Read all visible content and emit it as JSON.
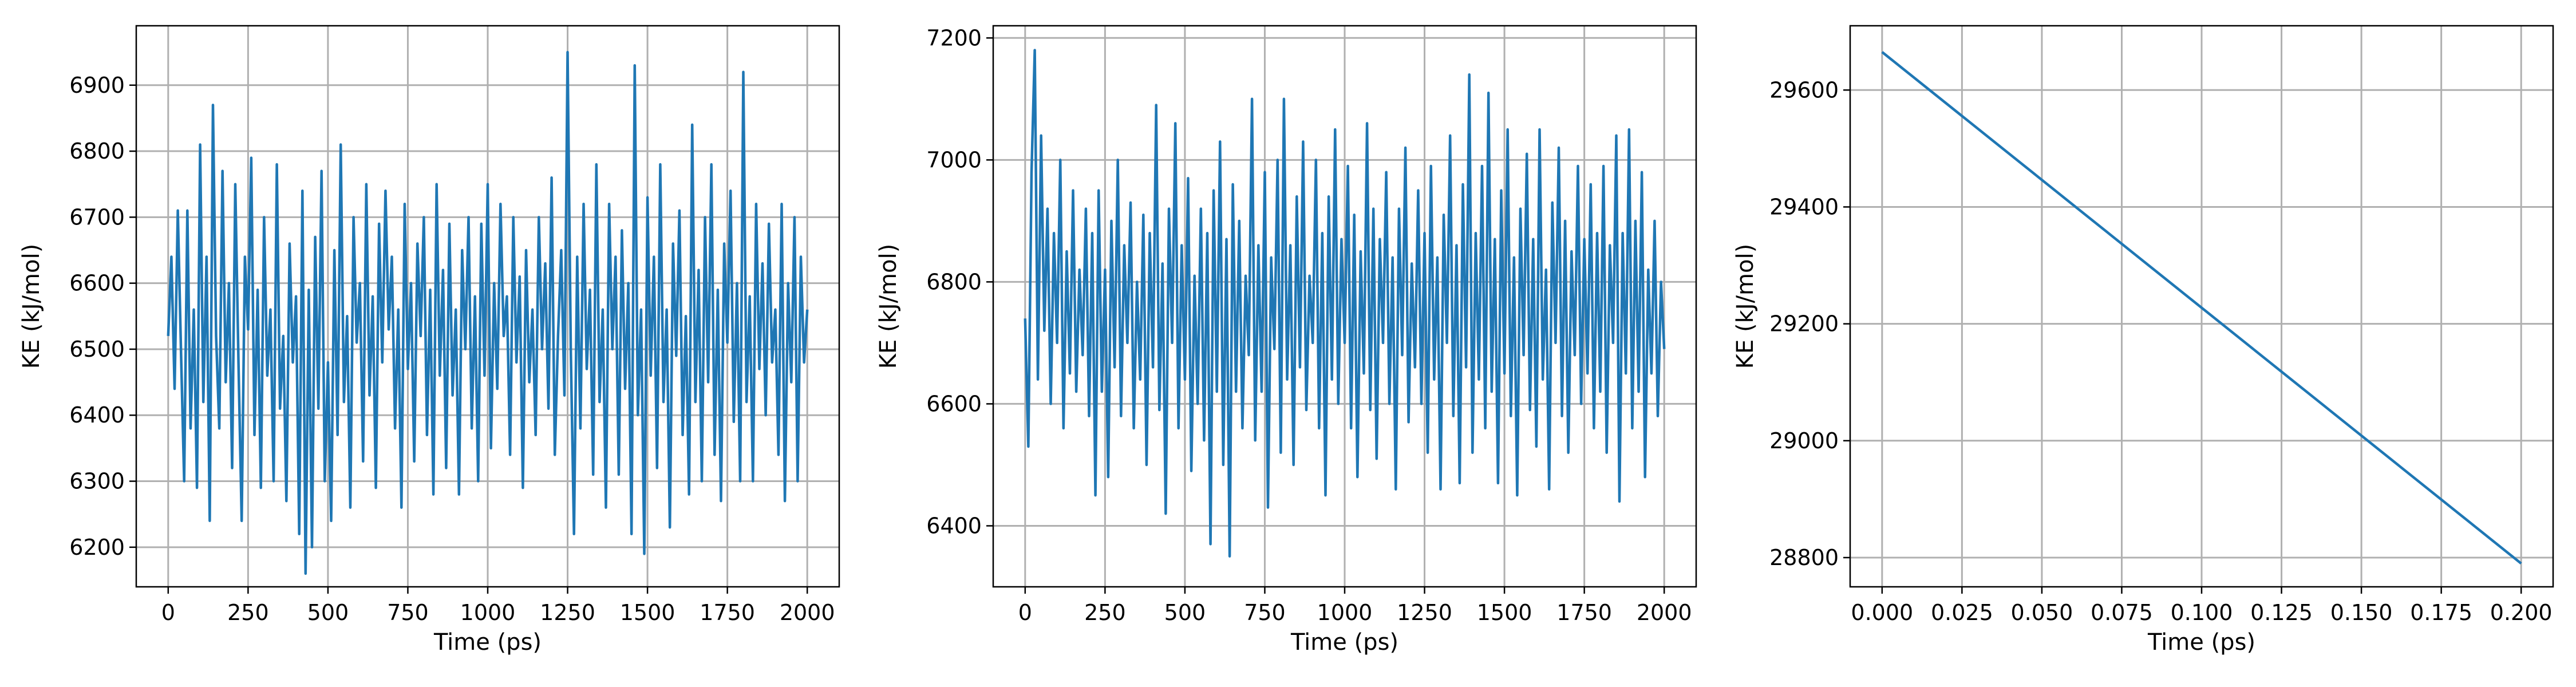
{
  "chart_data": [
    {
      "type": "line",
      "xlabel": "Time (ps)",
      "ylabel": "KE (kJ/mol)",
      "xlim": [
        -100,
        2100
      ],
      "ylim": [
        6140,
        6990
      ],
      "xticks": [
        0,
        250,
        500,
        750,
        1000,
        1250,
        1500,
        1750,
        2000
      ],
      "xtick_labels": [
        "0",
        "250",
        "500",
        "750",
        "1000",
        "1250",
        "1500",
        "1750",
        "2000"
      ],
      "yticks": [
        6200,
        6300,
        6400,
        6500,
        6600,
        6700,
        6800,
        6900
      ],
      "ytick_labels": [
        "6200",
        "6300",
        "6400",
        "6500",
        "6600",
        "6700",
        "6800",
        "6900"
      ],
      "grid": true,
      "series": [
        {
          "color": "#1f77b4",
          "x": [
            0,
            10,
            20,
            30,
            40,
            50,
            60,
            70,
            80,
            90,
            100,
            110,
            120,
            130,
            140,
            150,
            160,
            170,
            180,
            190,
            200,
            210,
            220,
            230,
            240,
            250,
            260,
            270,
            280,
            290,
            300,
            310,
            320,
            330,
            340,
            350,
            360,
            370,
            380,
            390,
            400,
            410,
            420,
            430,
            440,
            450,
            460,
            470,
            480,
            490,
            500,
            510,
            520,
            530,
            540,
            550,
            560,
            570,
            580,
            590,
            600,
            610,
            620,
            630,
            640,
            650,
            660,
            670,
            680,
            690,
            700,
            710,
            720,
            730,
            740,
            750,
            760,
            770,
            780,
            790,
            800,
            810,
            820,
            830,
            840,
            850,
            860,
            870,
            880,
            890,
            900,
            910,
            920,
            930,
            940,
            950,
            960,
            970,
            980,
            990,
            1000,
            1010,
            1020,
            1030,
            1040,
            1050,
            1060,
            1070,
            1080,
            1090,
            1100,
            1110,
            1120,
            1130,
            1140,
            1150,
            1160,
            1170,
            1180,
            1190,
            1200,
            1210,
            1220,
            1230,
            1240,
            1250,
            1260,
            1270,
            1280,
            1290,
            1300,
            1310,
            1320,
            1330,
            1340,
            1350,
            1360,
            1370,
            1380,
            1390,
            1400,
            1410,
            1420,
            1430,
            1440,
            1450,
            1460,
            1470,
            1480,
            1490,
            1500,
            1510,
            1520,
            1530,
            1540,
            1550,
            1560,
            1570,
            1580,
            1590,
            1600,
            1610,
            1620,
            1630,
            1640,
            1650,
            1660,
            1670,
            1680,
            1690,
            1700,
            1710,
            1720,
            1730,
            1740,
            1750,
            1760,
            1770,
            1780,
            1790,
            1800,
            1810,
            1820,
            1830,
            1840,
            1850,
            1860,
            1870,
            1880,
            1890,
            1900,
            1910,
            1920,
            1930,
            1940,
            1950,
            1960,
            1970,
            1980,
            1990,
            2000
          ],
          "y": [
            6520,
            6640,
            6440,
            6710,
            6500,
            6300,
            6710,
            6380,
            6560,
            6290,
            6810,
            6420,
            6640,
            6240,
            6870,
            6520,
            6380,
            6770,
            6450,
            6600,
            6320,
            6750,
            6480,
            6240,
            6640,
            6530,
            6790,
            6370,
            6590,
            6290,
            6700,
            6460,
            6560,
            6300,
            6780,
            6410,
            6520,
            6270,
            6660,
            6480,
            6580,
            6220,
            6740,
            6160,
            6590,
            6200,
            6670,
            6410,
            6770,
            6300,
            6480,
            6240,
            6650,
            6370,
            6810,
            6420,
            6550,
            6260,
            6700,
            6510,
            6600,
            6330,
            6750,
            6430,
            6580,
            6290,
            6690,
            6480,
            6740,
            6530,
            6640,
            6380,
            6560,
            6260,
            6720,
            6470,
            6600,
            6330,
            6660,
            6520,
            6700,
            6370,
            6590,
            6280,
            6750,
            6460,
            6620,
            6320,
            6690,
            6430,
            6560,
            6280,
            6650,
            6500,
            6700,
            6380,
            6580,
            6300,
            6690,
            6460,
            6750,
            6350,
            6600,
            6440,
            6720,
            6520,
            6580,
            6340,
            6700,
            6480,
            6610,
            6290,
            6650,
            6450,
            6560,
            6370,
            6700,
            6500,
            6630,
            6410,
            6760,
            6340,
            6520,
            6650,
            6430,
            6950,
            6500,
            6220,
            6640,
            6380,
            6720,
            6470,
            6590,
            6310,
            6780,
            6420,
            6560,
            6260,
            6720,
            6500,
            6640,
            6310,
            6680,
            6440,
            6600,
            6220,
            6930,
            6400,
            6560,
            6190,
            6730,
            6460,
            6640,
            6320,
            6780,
            6420,
            6560,
            6230,
            6660,
            6490,
            6710,
            6370,
            6550,
            6280,
            6840,
            6420,
            6620,
            6300,
            6700,
            6450,
            6780,
            6340,
            6590,
            6270,
            6660,
            6510,
            6740,
            6390,
            6600,
            6300,
            6920,
            6420,
            6580,
            6300,
            6720,
            6470,
            6630,
            6400,
            6690,
            6480,
            6560,
            6340,
            6720,
            6270,
            6600,
            6450,
            6700,
            6300,
            6640,
            6480,
            6560
          ]
        }
      ]
    },
    {
      "type": "line",
      "xlabel": "Time (ps)",
      "ylabel": "KE (kJ/mol)",
      "xlim": [
        -100,
        2100
      ],
      "ylim": [
        6300,
        7220
      ],
      "xticks": [
        0,
        250,
        500,
        750,
        1000,
        1250,
        1500,
        1750,
        2000
      ],
      "xtick_labels": [
        "0",
        "250",
        "500",
        "750",
        "1000",
        "1250",
        "1500",
        "1750",
        "2000"
      ],
      "yticks": [
        6400,
        6600,
        6800,
        7000,
        7200
      ],
      "ytick_labels": [
        "6400",
        "6600",
        "6800",
        "7000",
        "7200"
      ],
      "grid": true,
      "series": [
        {
          "color": "#1f77b4",
          "x": [
            0,
            10,
            20,
            30,
            40,
            50,
            60,
            70,
            80,
            90,
            100,
            110,
            120,
            130,
            140,
            150,
            160,
            170,
            180,
            190,
            200,
            210,
            220,
            230,
            240,
            250,
            260,
            270,
            280,
            290,
            300,
            310,
            320,
            330,
            340,
            350,
            360,
            370,
            380,
            390,
            400,
            410,
            420,
            430,
            440,
            450,
            460,
            470,
            480,
            490,
            500,
            510,
            520,
            530,
            540,
            550,
            560,
            570,
            580,
            590,
            600,
            610,
            620,
            630,
            640,
            650,
            660,
            670,
            680,
            690,
            700,
            710,
            720,
            730,
            740,
            750,
            760,
            770,
            780,
            790,
            800,
            810,
            820,
            830,
            840,
            850,
            860,
            870,
            880,
            890,
            900,
            910,
            920,
            930,
            940,
            950,
            960,
            970,
            980,
            990,
            1000,
            1010,
            1020,
            1030,
            1040,
            1050,
            1060,
            1070,
            1080,
            1090,
            1100,
            1110,
            1120,
            1130,
            1140,
            1150,
            1160,
            1170,
            1180,
            1190,
            1200,
            1210,
            1220,
            1230,
            1240,
            1250,
            1260,
            1270,
            1280,
            1290,
            1300,
            1310,
            1320,
            1330,
            1340,
            1350,
            1360,
            1370,
            1380,
            1390,
            1400,
            1410,
            1420,
            1430,
            1440,
            1450,
            1460,
            1470,
            1480,
            1490,
            1500,
            1510,
            1520,
            1530,
            1540,
            1550,
            1560,
            1570,
            1580,
            1590,
            1600,
            1610,
            1620,
            1630,
            1640,
            1650,
            1660,
            1670,
            1680,
            1690,
            1700,
            1710,
            1720,
            1730,
            1740,
            1750,
            1760,
            1770,
            1780,
            1790,
            1800,
            1810,
            1820,
            1830,
            1840,
            1850,
            1860,
            1870,
            1880,
            1890,
            1900,
            1910,
            1920,
            1930,
            1940,
            1950,
            1960,
            1970,
            1980,
            1990,
            2000
          ],
          "y": [
            6740,
            6530,
            6980,
            7180,
            6640,
            7040,
            6720,
            6920,
            6600,
            6880,
            6700,
            7000,
            6560,
            6850,
            6650,
            6950,
            6620,
            6820,
            6680,
            6920,
            6580,
            6880,
            6450,
            6950,
            6620,
            6820,
            6480,
            6900,
            6660,
            7000,
            6580,
            6860,
            6700,
            6930,
            6560,
            6800,
            6640,
            6910,
            6500,
            6880,
            6660,
            7090,
            6590,
            6830,
            6420,
            6920,
            6700,
            7060,
            6560,
            6860,
            6640,
            6970,
            6490,
            6810,
            6600,
            6920,
            6540,
            6880,
            6370,
            6950,
            6620,
            7030,
            6500,
            6870,
            6350,
            6960,
            6620,
            6900,
            6560,
            6810,
            6680,
            7100,
            6540,
            6860,
            6620,
            6980,
            6430,
            6840,
            6690,
            7000,
            6520,
            7100,
            6640,
            6860,
            6500,
            6940,
            6660,
            7030,
            6590,
            6810,
            6700,
            7000,
            6560,
            6880,
            6450,
            6940,
            6640,
            7050,
            6600,
            6870,
            6700,
            6990,
            6560,
            6910,
            6480,
            6850,
            6650,
            7060,
            6590,
            6920,
            6510,
            6870,
            6700,
            6980,
            6600,
            6840,
            6460,
            6920,
            6680,
            7020,
            6570,
            6830,
            6660,
            6950,
            6600,
            6880,
            6520,
            6990,
            6640,
            6840,
            6460,
            6910,
            6700,
            7040,
            6580,
            6860,
            6470,
            6960,
            6660,
            7140,
            6520,
            6880,
            6640,
            6990,
            6560,
            7110,
            6620,
            6870,
            6470,
            6950,
            6650,
            7050,
            6580,
            6840,
            6450,
            6920,
            6680,
            7010,
            6590,
            6870,
            6530,
            7050,
            6640,
            6820,
            6460,
            6930,
            6700,
            7020,
            6580,
            6900,
            6520,
            6850,
            6680,
            6990,
            6600,
            6870,
            6650,
            6960,
            6560,
            6880,
            6620,
            6990,
            6520,
            6860,
            6700,
            7040,
            6440,
            6880,
            6650,
            7050,
            6560,
            6900,
            6620,
            6980,
            6480,
            6820,
            6650,
            6900,
            6580,
            6800,
            6690
          ]
        }
      ]
    },
    {
      "type": "line",
      "xlabel": "Time (ps)",
      "ylabel": "KE (kJ/mol)",
      "xlim": [
        -0.01,
        0.21
      ],
      "ylim": [
        28750,
        29710
      ],
      "xticks": [
        0.0,
        0.025,
        0.05,
        0.075,
        0.1,
        0.125,
        0.15,
        0.175,
        0.2
      ],
      "xtick_labels": [
        "0.000",
        "0.025",
        "0.050",
        "0.075",
        "0.100",
        "0.125",
        "0.150",
        "0.175",
        "0.200"
      ],
      "yticks": [
        28800,
        29000,
        29200,
        29400,
        29600
      ],
      "ytick_labels": [
        "28800",
        "29000",
        "29200",
        "29400",
        "29600"
      ],
      "grid": true,
      "series": [
        {
          "color": "#1f77b4",
          "x": [
            0.0,
            0.2
          ],
          "y": [
            29665,
            28790
          ]
        }
      ]
    }
  ]
}
